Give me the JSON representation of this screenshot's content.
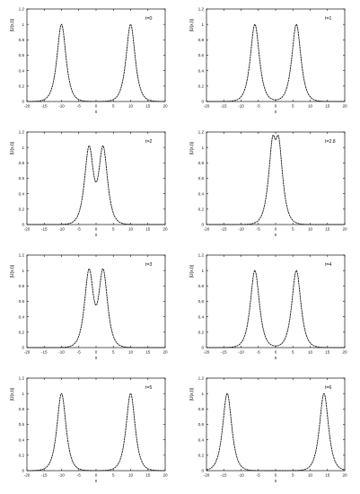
{
  "chart_data": [
    {
      "type": "line",
      "label": "t=0",
      "xlabel": "x",
      "ylabel": "|U(x,t)|",
      "xlim": [
        -20,
        20
      ],
      "ylim": [
        0,
        1.2
      ],
      "xticks": [
        -20,
        -15,
        -10,
        -5,
        0,
        5,
        10,
        15,
        20
      ],
      "yticks": [
        0,
        0.2,
        0.4,
        0.6,
        0.8,
        1,
        1.2
      ],
      "series": [
        {
          "peaks": [
            -10,
            10
          ],
          "amplitude": 1.0,
          "width": 1.15
        }
      ]
    },
    {
      "type": "line",
      "label": "t=1",
      "xlabel": "x",
      "ylabel": "|U(x,t)|",
      "xlim": [
        -20,
        20
      ],
      "ylim": [
        0,
        1.2
      ],
      "xticks": [
        -20,
        -15,
        -10,
        -5,
        0,
        5,
        10,
        15,
        20
      ],
      "yticks": [
        0,
        0.2,
        0.4,
        0.6,
        0.8,
        1,
        1.2
      ],
      "series": [
        {
          "peaks": [
            -6,
            6
          ],
          "amplitude": 1.0,
          "width": 1.15
        }
      ]
    },
    {
      "type": "line",
      "label": "t=2",
      "xlabel": "x",
      "ylabel": "|U(x,t)|",
      "xlim": [
        -20,
        20
      ],
      "ylim": [
        0,
        1.2
      ],
      "xticks": [
        -20,
        -15,
        -10,
        -5,
        0,
        5,
        10,
        15,
        20
      ],
      "yticks": [
        0,
        0.2,
        0.4,
        0.6,
        0.8,
        1,
        1.2
      ],
      "series": [
        {
          "peaks": [
            -2,
            2
          ],
          "amplitude": 1.05,
          "width": 1.15,
          "dip": 0.55
        }
      ]
    },
    {
      "type": "line",
      "label": "t=2.8",
      "xlabel": "x",
      "ylabel": "|U(x,t)|",
      "xlim": [
        -20,
        20
      ],
      "ylim": [
        0,
        1.2
      ],
      "xticks": [
        -20,
        -15,
        -10,
        -5,
        0,
        5,
        10,
        15,
        20
      ],
      "yticks": [
        0,
        0.2,
        0.4,
        0.6,
        0.8,
        1,
        1.2
      ],
      "series": [
        {
          "peaks": [
            -0.8,
            0.8
          ],
          "amplitude": 1.2,
          "width": 1.15,
          "dip": 1.1
        }
      ]
    },
    {
      "type": "line",
      "label": "t=3",
      "xlabel": "x",
      "ylabel": "|U(x,t)|",
      "xlim": [
        -20,
        20
      ],
      "ylim": [
        0,
        1.2
      ],
      "xticks": [
        -20,
        -15,
        -10,
        -5,
        0,
        5,
        10,
        15,
        20
      ],
      "yticks": [
        0,
        0.2,
        0.4,
        0.6,
        0.8,
        1,
        1.2
      ],
      "series": [
        {
          "peaks": [
            -2,
            2
          ],
          "amplitude": 1.05,
          "width": 1.15,
          "dip": 0.55
        }
      ]
    },
    {
      "type": "line",
      "label": "t=4",
      "xlabel": "x",
      "ylabel": "|U(x,t)|",
      "xlim": [
        -20,
        20
      ],
      "ylim": [
        0,
        1.2
      ],
      "xticks": [
        -20,
        -15,
        -10,
        -5,
        0,
        5,
        10,
        15,
        20
      ],
      "yticks": [
        0,
        0.2,
        0.4,
        0.6,
        0.8,
        1,
        1.2
      ],
      "series": [
        {
          "peaks": [
            -6,
            6
          ],
          "amplitude": 1.0,
          "width": 1.15
        }
      ]
    },
    {
      "type": "line",
      "label": "t=5",
      "xlabel": "x",
      "ylabel": "|U(x,t)|",
      "xlim": [
        -20,
        20
      ],
      "ylim": [
        0,
        1.2
      ],
      "xticks": [
        -20,
        -15,
        -10,
        -5,
        0,
        5,
        10,
        15,
        20
      ],
      "yticks": [
        0,
        0.2,
        0.4,
        0.6,
        0.8,
        1,
        1.2
      ],
      "series": [
        {
          "peaks": [
            -10,
            10
          ],
          "amplitude": 1.0,
          "width": 1.15
        }
      ]
    },
    {
      "type": "line",
      "label": "t=6",
      "xlabel": "x",
      "ylabel": "|U(x,t)|",
      "xlim": [
        -20,
        20
      ],
      "ylim": [
        0,
        1.2
      ],
      "xticks": [
        -20,
        -15,
        -10,
        -5,
        0,
        5,
        10,
        15,
        20
      ],
      "yticks": [
        0,
        0.2,
        0.4,
        0.6,
        0.8,
        1,
        1.2
      ],
      "series": [
        {
          "peaks": [
            -14,
            14
          ],
          "amplitude": 1.0,
          "width": 1.15
        }
      ]
    }
  ],
  "colors": {
    "curve": "#111111",
    "axis": "#111111",
    "background": "#ffffff"
  }
}
